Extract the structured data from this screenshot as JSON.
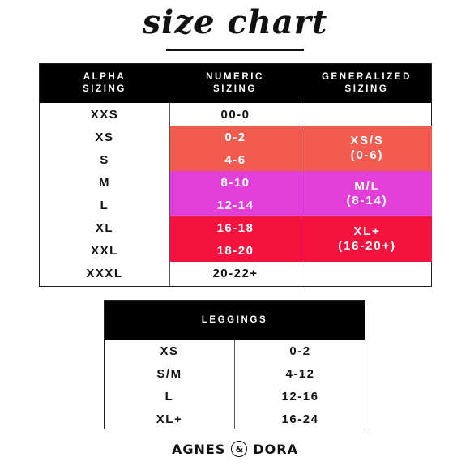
{
  "title": "size chart",
  "size_table": {
    "headers": {
      "alpha_line1": "ALPHA",
      "alpha_line2": "SIZING",
      "numeric_line1": "NUMERIC",
      "numeric_line2": "SIZING",
      "general_line1": "GENERALIZED",
      "general_line2": "SIZING"
    },
    "rows": [
      {
        "alpha": "XXS",
        "numeric": "00-0"
      },
      {
        "alpha": "XS",
        "numeric": "0-2"
      },
      {
        "alpha": "S",
        "numeric": "4-6"
      },
      {
        "alpha": "M",
        "numeric": "8-10"
      },
      {
        "alpha": "L",
        "numeric": "12-14"
      },
      {
        "alpha": "XL",
        "numeric": "16-18"
      },
      {
        "alpha": "XXL",
        "numeric": "18-20"
      },
      {
        "alpha": "XXXL",
        "numeric": "20-22+"
      }
    ],
    "groups": [
      {
        "line1": "XS/S",
        "line2": "(0-6)",
        "color": "#f25c50"
      },
      {
        "line1": "M/L",
        "line2": "(8-14)",
        "color": "#e23fd8"
      },
      {
        "line1": "XL+",
        "line2": "(16-20+)",
        "color": "#f4133f"
      }
    ]
  },
  "leggings_table": {
    "header": "LEGGINGS",
    "rows": [
      {
        "size": "XS",
        "range": "0-2"
      },
      {
        "size": "S/M",
        "range": "4-12"
      },
      {
        "size": "L",
        "range": "12-16"
      },
      {
        "size": "XL+",
        "range": "16-24"
      }
    ]
  },
  "brand": {
    "left": "AGNES",
    "amp": "&",
    "right": "DORA"
  }
}
